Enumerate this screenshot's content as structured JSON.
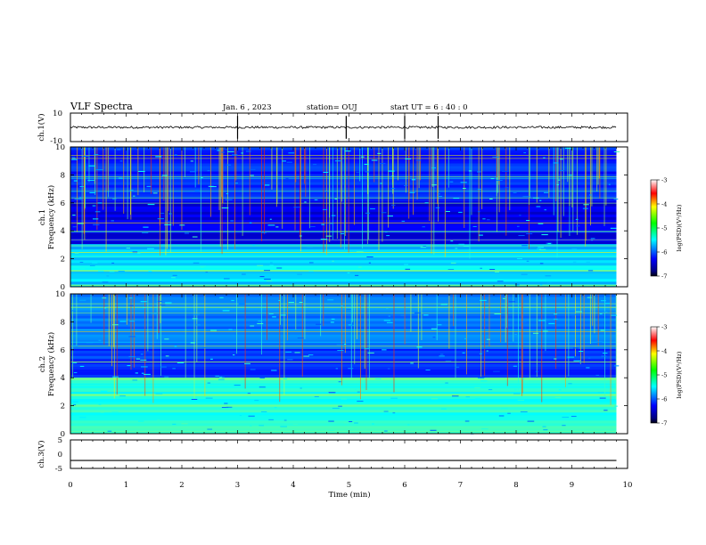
{
  "header": {
    "title": "VLF Spectra",
    "date": "Jan. 6 , 2023",
    "station": "station= OUJ",
    "start": "start  UT =   6 : 40 : 0"
  },
  "chart_data": [
    {
      "type": "line",
      "panel": "ch1-waveform",
      "ylabel": "ch.1(V)",
      "ylim": [
        -10,
        10
      ],
      "yticks": [
        "10",
        "-10"
      ],
      "x": [
        0,
        9.8
      ],
      "baseline_value": 0,
      "spikes_at_min": [
        3.0,
        4.95,
        6.0,
        6.6
      ]
    },
    {
      "type": "heatmap",
      "panel": "ch1-spectrogram",
      "ylabel_line1": "ch.1",
      "ylabel_line2": "Frequency (kHz)",
      "ylim": [
        0,
        10
      ],
      "yticks": [
        "0",
        "2",
        "4",
        "6",
        "8",
        "10"
      ],
      "xlim": [
        0,
        10
      ],
      "data_end_min": 9.8,
      "colorbar": {
        "label": "log(PSD)(V²/Hz)",
        "ticks": [
          "-3",
          "-4",
          "-5",
          "-6",
          "-7"
        ],
        "range": [
          -7,
          -3
        ]
      },
      "bright_band_khz": [
        0,
        3
      ],
      "sferic_activity": "high"
    },
    {
      "type": "heatmap",
      "panel": "ch2-spectrogram",
      "ylabel_line1": "ch.2",
      "ylabel_line2": "Frequency (kHz)",
      "ylim": [
        0,
        10
      ],
      "yticks": [
        "0",
        "2",
        "4",
        "6",
        "8",
        "10"
      ],
      "xlim": [
        0,
        10
      ],
      "data_end_min": 9.8,
      "colorbar": {
        "label": "log(PSD)(V²/Hz)",
        "ticks": [
          "-3",
          "-4",
          "-5",
          "-6",
          "-7"
        ],
        "range": [
          -7,
          -3
        ]
      },
      "bright_band_khz": [
        0,
        4
      ],
      "sferic_activity": "medium"
    },
    {
      "type": "line",
      "panel": "ch3-waveform",
      "ylabel": "ch.3(V)",
      "ylim": [
        -5,
        5
      ],
      "yticks": [
        "5",
        "0",
        "-5"
      ],
      "x": [
        0,
        9.8
      ],
      "value": -2.2
    }
  ],
  "xaxis": {
    "label": "Time (min)",
    "ticks": [
      "0",
      "1",
      "2",
      "3",
      "4",
      "5",
      "6",
      "7",
      "8",
      "9",
      "10"
    ],
    "range": [
      0,
      10
    ]
  },
  "colors": {
    "waveform": "#000000",
    "frame": "#000000"
  }
}
